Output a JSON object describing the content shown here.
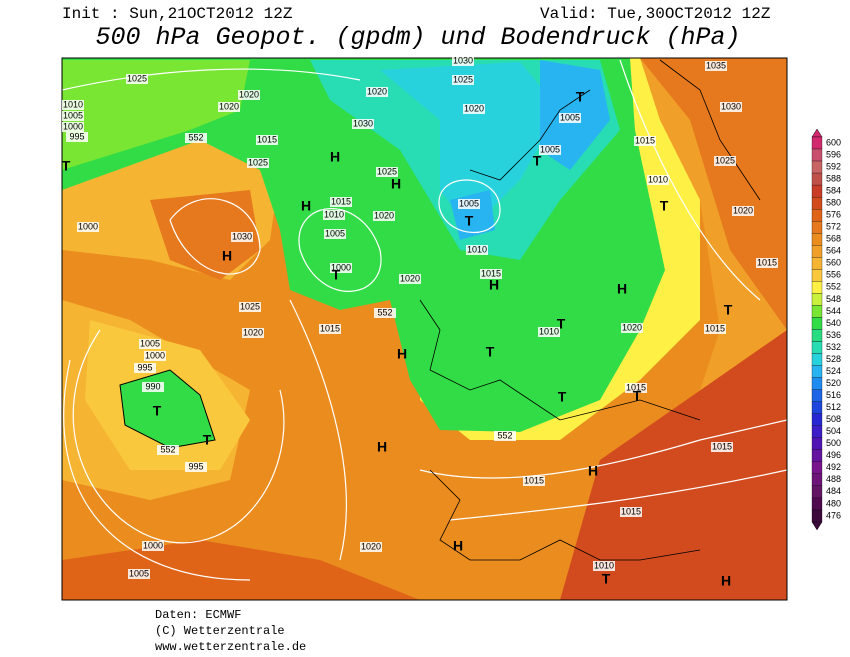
{
  "header": {
    "init": "Init : Sun,21OCT2012 12Z",
    "valid": "Valid: Tue,30OCT2012 12Z",
    "title": "500 hPa Geopot. (gpdm) und Bodendruck (hPa)"
  },
  "colorbar": {
    "ticks": [
      600,
      596,
      592,
      588,
      584,
      580,
      576,
      572,
      568,
      564,
      560,
      556,
      552,
      548,
      544,
      540,
      536,
      532,
      528,
      524,
      520,
      516,
      512,
      508,
      504,
      500,
      496,
      492,
      488,
      484,
      480,
      476
    ],
    "colors": [
      "#d2286e",
      "#c8506e",
      "#c86464",
      "#c0504a",
      "#c83c28",
      "#d24b1e",
      "#e06418",
      "#e6781e",
      "#eb8c1e",
      "#f0a028",
      "#f5b432",
      "#fac83c",
      "#fff046",
      "#c8f03c",
      "#78e632",
      "#32dc46",
      "#28dc82",
      "#28dcb4",
      "#28d2dc",
      "#28b4f0",
      "#1e8cf0",
      "#1e64e6",
      "#1e46dc",
      "#2828d2",
      "#3c1ec8",
      "#5014b4",
      "#6414a0",
      "#78148c",
      "#6e1478",
      "#641464",
      "#500a50",
      "#3c0a3c"
    ]
  },
  "map": {
    "labels": [
      "1025",
      "1010",
      "1005",
      "1000",
      "995",
      "1020",
      "1020",
      "1015",
      "1025",
      "552",
      "T",
      "1000",
      "1030",
      "H",
      "1025",
      "1020",
      "1005",
      "1000",
      "995",
      "990",
      "T",
      "T",
      "552",
      "995",
      "1000",
      "1005",
      "H",
      "H",
      "1030",
      "1020",
      "1025",
      "H",
      "1015",
      "1010",
      "1020",
      "1005",
      "1000",
      "T",
      "1020",
      "1015",
      "552",
      "H",
      "1030",
      "1025",
      "1020",
      "1005",
      "T",
      "1010",
      "1015",
      "H",
      "T",
      "1005",
      "1005",
      "T",
      "H",
      "T",
      "1010",
      "T",
      "T",
      "1015",
      "T",
      "1020",
      "552",
      "H",
      "1015",
      "H",
      "1015",
      "H",
      "1020",
      "1010",
      "T",
      "H",
      "1035",
      "1030",
      "1015",
      "1025",
      "1010",
      "T",
      "1020",
      "1015",
      "T",
      "1015",
      "1015"
    ]
  },
  "footer": {
    "source": "Daten: ECMWF",
    "copyright": "(C) Wetterzentrale",
    "url": "www.wetterzentrale.de"
  }
}
